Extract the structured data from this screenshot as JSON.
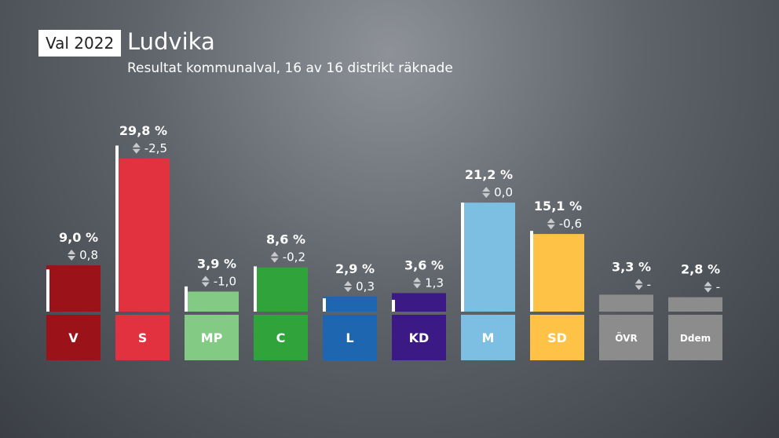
{
  "header": {
    "tag": "Val 2022",
    "title": "Ludvika",
    "subtitle": "Resultat kommunalval, 16 av 16 distrikt räknade"
  },
  "chart_data": {
    "type": "bar",
    "categories": [
      "V",
      "S",
      "MP",
      "C",
      "L",
      "KD",
      "M",
      "SD",
      "ÖVR",
      "Ddem"
    ],
    "values": [
      9.0,
      29.8,
      3.9,
      8.6,
      2.9,
      3.6,
      21.2,
      15.1,
      3.3,
      2.8
    ],
    "previous": [
      8.2,
      32.3,
      4.9,
      8.8,
      2.6,
      2.3,
      21.2,
      15.7,
      null,
      null
    ],
    "value_labels": [
      "9,0 %",
      "29,8 %",
      "3,9 %",
      "8,6 %",
      "2,9 %",
      "3,6 %",
      "21,2 %",
      "15,1 %",
      "3,3 %",
      "2,8 %"
    ],
    "change_labels": [
      "0,8",
      "-2,5",
      "-1,0",
      "-0,2",
      "0,3",
      "1,3",
      "0,0",
      "-0,6",
      "-",
      "-"
    ],
    "colors": [
      "#9b1219",
      "#e3323f",
      "#83cb85",
      "#31a33b",
      "#1f66b0",
      "#3b1a85",
      "#7dbfe3",
      "#fec346",
      "#8c8c8c",
      "#8c8c8c"
    ],
    "marker_color": "#ffffff",
    "ylim": [
      0,
      32
    ]
  }
}
